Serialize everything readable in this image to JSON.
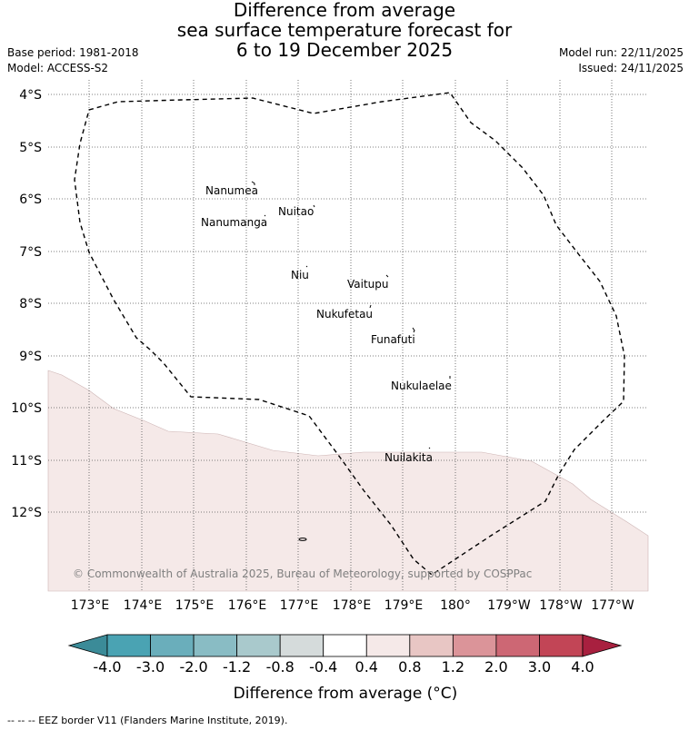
{
  "title": {
    "line1": "Difference from average",
    "line2": "sea surface temperature forecast for",
    "line3": "6 to 19 December 2025"
  },
  "meta": {
    "base_period": "Base period: 1981-2018",
    "model": "Model: ACCESS-S2",
    "model_run": "Model run: 22/11/2025",
    "issued": "Issued: 24/11/2025"
  },
  "axes": {
    "lat_labels": [
      "4°S",
      "5°S",
      "6°S",
      "7°S",
      "8°S",
      "9°S",
      "10°S",
      "11°S",
      "12°S"
    ],
    "lon_labels": [
      "173°E",
      "174°E",
      "175°E",
      "176°E",
      "177°E",
      "178°E",
      "179°E",
      "180°",
      "179°W",
      "178°W",
      "177°W"
    ]
  },
  "islands": [
    {
      "name": "Nanumea"
    },
    {
      "name": "Nuitao"
    },
    {
      "name": "Nanumanga"
    },
    {
      "name": "Niu"
    },
    {
      "name": "Vaitupu"
    },
    {
      "name": "Nukufetau"
    },
    {
      "name": "Funafuti"
    },
    {
      "name": "Nukulaelae"
    },
    {
      "name": "Nuilakita"
    }
  ],
  "copyright": "© Commonwealth of Australia 2025, Bureau of Meteorology, supported by COSPPac",
  "colorbar": {
    "ticks": [
      "-4.0",
      "-3.0",
      "-2.0",
      "-1.2",
      "-0.8",
      "-0.4",
      "0.4",
      "0.8",
      "1.2",
      "2.0",
      "3.0",
      "4.0"
    ],
    "colors": [
      "#4aa3b3",
      "#6aaebb",
      "#89bcc4",
      "#a9c9cc",
      "#d5dbdb",
      "#ffffff",
      "#f5e9e8",
      "#e8c6c4",
      "#db9499",
      "#cd6774",
      "#c24556"
    ],
    "under_color": "#3b8b98",
    "over_color": "#a8203f",
    "label": "Difference from average (°C)"
  },
  "footer": "--  --  -- EEZ border V11 (Flanders Marine Institute, 2019)."
}
